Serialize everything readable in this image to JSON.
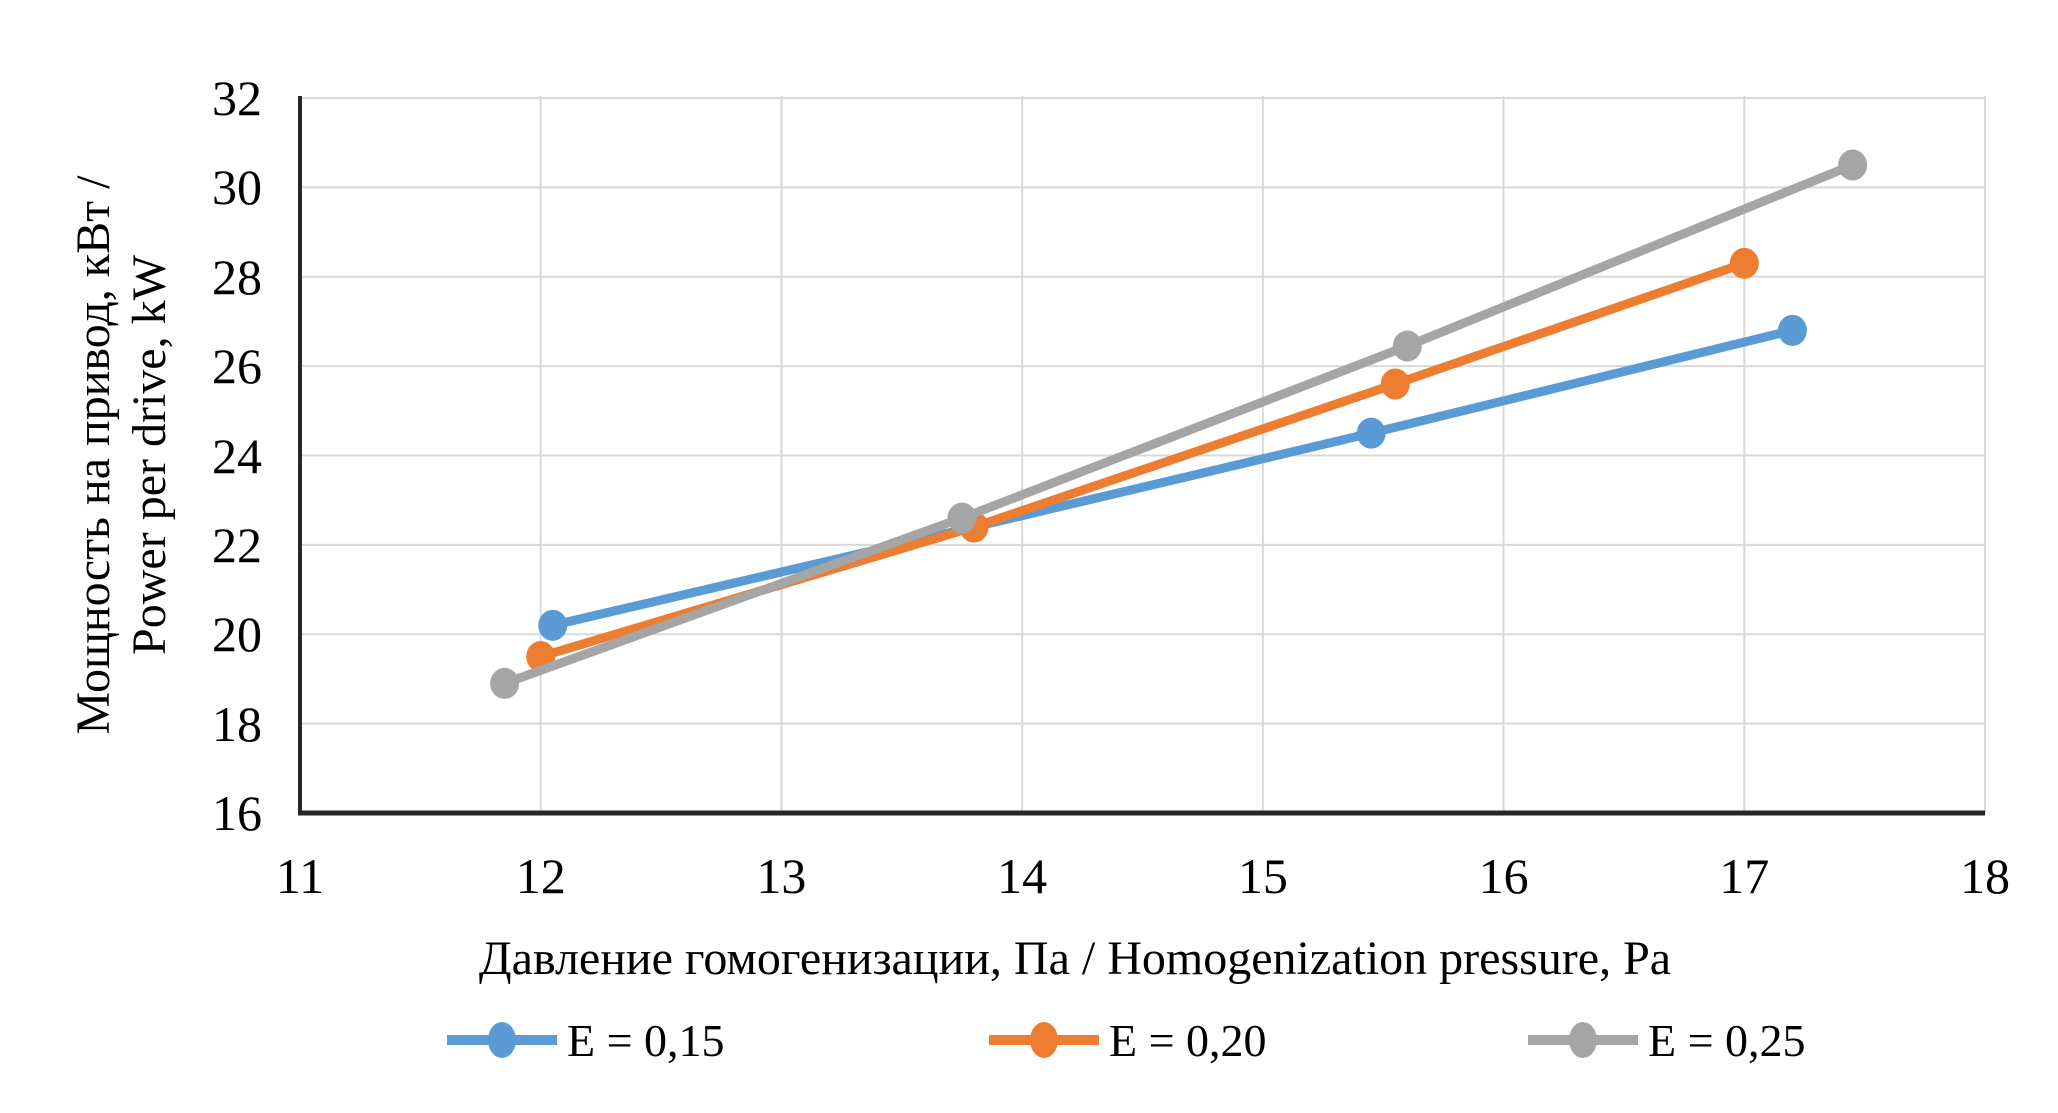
{
  "chart_data": {
    "type": "line",
    "title": "",
    "xlabel": "Давление гомогенизации, Па / Homogenization pressure, Pa",
    "ylabel_line1": "Мощность на привод, кВт /",
    "ylabel_line2": "Power per drive, kW",
    "xlim": [
      11,
      18
    ],
    "ylim": [
      16,
      32
    ],
    "x_ticks": [
      11,
      12,
      13,
      14,
      15,
      16,
      17,
      18
    ],
    "y_ticks": [
      32,
      30,
      28,
      26,
      24,
      22,
      20,
      18,
      16
    ],
    "grid": true,
    "legend_position": "bottom",
    "series": [
      {
        "name": "Е = 0,15",
        "color": "#5B9BD5",
        "points": [
          [
            12.05,
            20.2
          ],
          [
            13.8,
            22.4
          ],
          [
            15.45,
            24.5
          ],
          [
            17.2,
            26.8
          ]
        ]
      },
      {
        "name": "Е = 0,20",
        "color": "#ED7D31",
        "points": [
          [
            12.0,
            19.5
          ],
          [
            13.8,
            22.4
          ],
          [
            15.55,
            25.6
          ],
          [
            17.0,
            28.3
          ]
        ]
      },
      {
        "name": "Е = 0,25",
        "color": "#A5A5A5",
        "points": [
          [
            11.85,
            18.9
          ],
          [
            13.75,
            22.6
          ],
          [
            15.6,
            26.45
          ],
          [
            17.45,
            30.5
          ]
        ]
      }
    ],
    "style": {
      "gridline_color": "#D9D9D9",
      "axis_color": "#262626",
      "text_color": "#000000",
      "background": "#FFFFFF"
    }
  }
}
